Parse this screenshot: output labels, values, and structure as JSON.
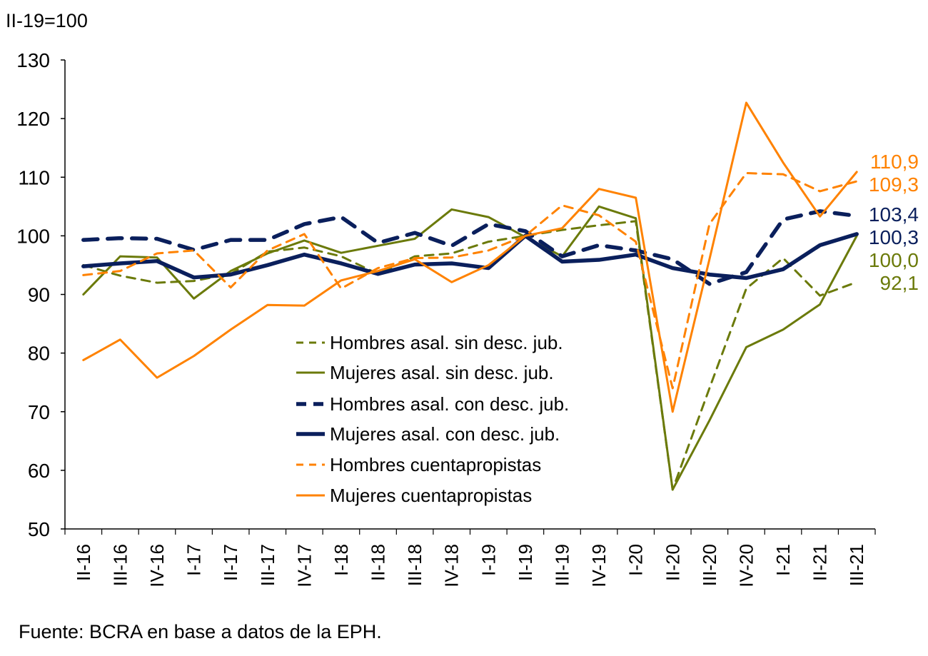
{
  "chart_data": {
    "type": "line",
    "unit_label": "II-19=100",
    "source": "Fuente: BCRA en base a datos de la EPH.",
    "ylim": [
      50,
      130
    ],
    "yticks": [
      50,
      60,
      70,
      80,
      90,
      100,
      110,
      120,
      130
    ],
    "grid": false,
    "legend_position": "center-left",
    "categories": [
      "II-16",
      "III-16",
      "IV-16",
      "I-17",
      "II-17",
      "III-17",
      "IV-17",
      "I-18",
      "II-18",
      "III-18",
      "IV-18",
      "I-19",
      "II-19",
      "III-19",
      "IV-19",
      "I-20",
      "II-20",
      "III-20",
      "IV-20",
      "I-21",
      "II-21",
      "III-21"
    ],
    "series": [
      {
        "name": "Hombres asal. sin desc. jub.",
        "color": "#6b7a0a",
        "style": "dashed",
        "end_label": "92,1",
        "values": [
          95,
          93.2,
          92,
          92.3,
          93.5,
          97.3,
          98,
          96.5,
          93.5,
          96.5,
          97,
          99,
          100,
          101,
          101.8,
          102.5,
          56.7,
          74,
          91,
          96.2,
          89.8,
          92.1
        ]
      },
      {
        "name": "Mujeres asal. sin desc. jub.",
        "color": "#6b7a0a",
        "style": "solid",
        "end_label": "100,0",
        "values": [
          90,
          96.5,
          96.3,
          89.3,
          94,
          97,
          99.2,
          97.1,
          98.3,
          99.5,
          104.5,
          103.2,
          99.8,
          96.5,
          105,
          103,
          56.7,
          68.5,
          81,
          84,
          88.3,
          100
        ]
      },
      {
        "name": "Hombres asal. con desc. jub.",
        "color": "#0a1f5c",
        "style": "dashed-thick",
        "end_label": "103,4",
        "values": [
          99.3,
          99.6,
          99.5,
          97.6,
          99.3,
          99.3,
          102,
          103.2,
          98.8,
          100.5,
          98.3,
          102,
          100.8,
          96.5,
          98.4,
          97.5,
          96,
          91.8,
          93.8,
          102.8,
          104.2,
          103.4
        ]
      },
      {
        "name": "Mujeres asal. con desc. jub.",
        "color": "#0a1f5c",
        "style": "solid-thick",
        "end_label": "100,3",
        "values": [
          94.8,
          95.3,
          95.7,
          92.9,
          93.4,
          95,
          96.8,
          95.3,
          93.5,
          95.1,
          95.3,
          94.5,
          100,
          95.6,
          95.9,
          96.8,
          94.5,
          93.4,
          92.8,
          94.3,
          98.4,
          100.3
        ]
      },
      {
        "name": "Hombres cuentapropistas",
        "color": "#ff8200",
        "style": "dashed",
        "end_label": "109,3",
        "values": [
          93.3,
          94,
          97,
          97.5,
          91.2,
          97.5,
          100.3,
          91,
          94.5,
          96.2,
          96.3,
          97.5,
          100,
          105.2,
          103.5,
          99,
          74,
          102,
          110.7,
          110.5,
          107.6,
          109.3
        ]
      },
      {
        "name": "Mujeres cuentapropistas",
        "color": "#ff8200",
        "style": "solid",
        "end_label": "110,9",
        "values": [
          78.8,
          82.3,
          75.8,
          79.5,
          84,
          88.2,
          88.1,
          92.4,
          94,
          96,
          92.1,
          95,
          100,
          101.3,
          108,
          106.5,
          70,
          96,
          122.7,
          112.5,
          103.3,
          110.9
        ]
      }
    ]
  }
}
